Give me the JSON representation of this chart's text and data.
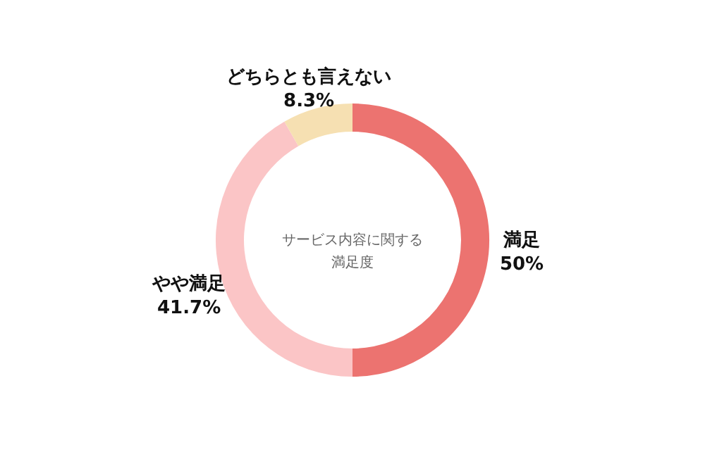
{
  "chart_data": {
    "type": "donut",
    "title": "サービス内容に関する満足度",
    "categories": [
      "満足",
      "やや満足",
      "どちらとも言えない"
    ],
    "values": [
      50,
      41.7,
      8.3
    ],
    "value_labels": [
      "50%",
      "41.7%",
      "8.3%"
    ],
    "colors": [
      "#ec7370",
      "#fbc5c6",
      "#f6e0b2"
    ],
    "legend": false
  }
}
